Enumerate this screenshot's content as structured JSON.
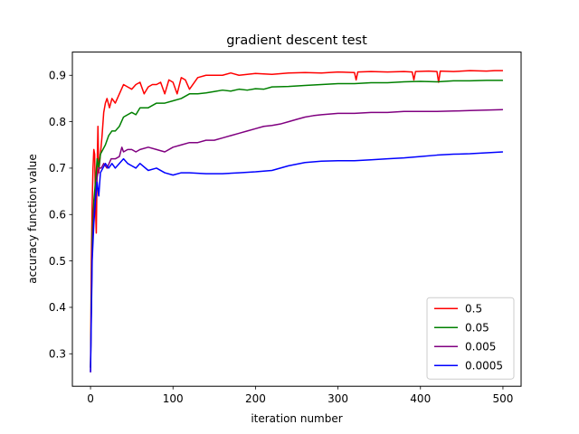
{
  "chart_data": {
    "type": "line",
    "title": "gradient descent test",
    "xlabel": "iteration number",
    "ylabel": "accuracy function value",
    "xlim": [
      -22,
      522
    ],
    "ylim": [
      0.23,
      0.95
    ],
    "xticks": [
      0,
      100,
      200,
      300,
      400,
      500
    ],
    "yticks": [
      0.3,
      0.4,
      0.5,
      0.6,
      0.7,
      0.8,
      0.9
    ],
    "xtick_labels": [
      "0",
      "100",
      "200",
      "300",
      "400",
      "500"
    ],
    "ytick_labels": [
      "0.3",
      "0.4",
      "0.5",
      "0.6",
      "0.7",
      "0.8",
      "0.9"
    ],
    "grid": false,
    "legend": "lower-right",
    "series": [
      {
        "name": "0.5",
        "color": "#ff0000",
        "x": [
          0,
          1,
          2,
          3,
          4,
          5,
          6,
          7,
          8,
          9,
          10,
          12,
          14,
          16,
          18,
          20,
          23,
          26,
          30,
          35,
          40,
          45,
          50,
          55,
          60,
          65,
          70,
          75,
          80,
          85,
          90,
          95,
          100,
          105,
          110,
          115,
          120,
          130,
          140,
          150,
          160,
          170,
          180,
          190,
          200,
          220,
          240,
          260,
          280,
          300,
          320,
          322,
          324,
          340,
          360,
          380,
          390,
          392,
          394,
          410,
          420,
          422,
          424,
          440,
          460,
          480,
          490,
          500
        ],
        "y": [
          0.26,
          0.5,
          0.62,
          0.7,
          0.74,
          0.73,
          0.62,
          0.56,
          0.7,
          0.79,
          0.69,
          0.73,
          0.77,
          0.82,
          0.84,
          0.85,
          0.83,
          0.85,
          0.84,
          0.86,
          0.88,
          0.875,
          0.87,
          0.88,
          0.885,
          0.86,
          0.875,
          0.88,
          0.88,
          0.885,
          0.86,
          0.89,
          0.885,
          0.86,
          0.895,
          0.89,
          0.87,
          0.895,
          0.9,
          0.9,
          0.9,
          0.905,
          0.9,
          0.902,
          0.904,
          0.902,
          0.905,
          0.906,
          0.905,
          0.907,
          0.906,
          0.89,
          0.907,
          0.908,
          0.907,
          0.908,
          0.907,
          0.89,
          0.908,
          0.909,
          0.908,
          0.885,
          0.909,
          0.908,
          0.91,
          0.909,
          0.91,
          0.91
        ]
      },
      {
        "name": "0.05",
        "color": "#008000",
        "x": [
          0,
          2,
          4,
          6,
          8,
          10,
          12,
          15,
          18,
          22,
          26,
          30,
          35,
          40,
          45,
          50,
          55,
          60,
          70,
          80,
          90,
          100,
          110,
          120,
          130,
          140,
          150,
          160,
          170,
          180,
          190,
          200,
          210,
          220,
          240,
          260,
          280,
          300,
          320,
          340,
          360,
          380,
          400,
          420,
          440,
          460,
          480,
          500
        ],
        "y": [
          0.27,
          0.55,
          0.63,
          0.67,
          0.72,
          0.7,
          0.73,
          0.74,
          0.75,
          0.77,
          0.78,
          0.78,
          0.79,
          0.81,
          0.815,
          0.82,
          0.815,
          0.83,
          0.83,
          0.84,
          0.84,
          0.845,
          0.85,
          0.86,
          0.86,
          0.862,
          0.865,
          0.868,
          0.866,
          0.87,
          0.868,
          0.871,
          0.87,
          0.875,
          0.876,
          0.878,
          0.88,
          0.882,
          0.882,
          0.884,
          0.884,
          0.886,
          0.887,
          0.886,
          0.888,
          0.888,
          0.889,
          0.889
        ]
      },
      {
        "name": "0.005",
        "color": "#800080",
        "x": [
          0,
          2,
          4,
          6,
          8,
          10,
          13,
          16,
          20,
          25,
          30,
          35,
          38,
          40,
          45,
          50,
          55,
          60,
          70,
          80,
          90,
          100,
          110,
          120,
          130,
          140,
          150,
          160,
          170,
          180,
          190,
          200,
          210,
          220,
          230,
          240,
          250,
          260,
          270,
          280,
          300,
          320,
          340,
          360,
          380,
          400,
          420,
          440,
          460,
          480,
          500
        ],
        "y": [
          0.27,
          0.52,
          0.6,
          0.64,
          0.68,
          0.7,
          0.7,
          0.71,
          0.7,
          0.72,
          0.72,
          0.725,
          0.745,
          0.735,
          0.74,
          0.74,
          0.735,
          0.74,
          0.745,
          0.74,
          0.735,
          0.745,
          0.75,
          0.755,
          0.755,
          0.76,
          0.76,
          0.765,
          0.77,
          0.775,
          0.78,
          0.785,
          0.79,
          0.792,
          0.795,
          0.8,
          0.805,
          0.81,
          0.813,
          0.815,
          0.818,
          0.818,
          0.82,
          0.82,
          0.822,
          0.822,
          0.822,
          0.823,
          0.824,
          0.825,
          0.826
        ]
      },
      {
        "name": "0.0005",
        "color": "#0000ff",
        "x": [
          0,
          2,
          4,
          6,
          8,
          10,
          12,
          15,
          18,
          22,
          26,
          30,
          35,
          40,
          45,
          50,
          55,
          60,
          70,
          80,
          90,
          100,
          110,
          120,
          140,
          160,
          180,
          200,
          220,
          240,
          260,
          280,
          300,
          320,
          340,
          360,
          380,
          400,
          420,
          440,
          460,
          480,
          500
        ],
        "y": [
          0.26,
          0.5,
          0.58,
          0.63,
          0.67,
          0.64,
          0.69,
          0.7,
          0.71,
          0.7,
          0.71,
          0.7,
          0.71,
          0.72,
          0.71,
          0.705,
          0.7,
          0.71,
          0.695,
          0.7,
          0.69,
          0.685,
          0.69,
          0.69,
          0.688,
          0.688,
          0.69,
          0.692,
          0.695,
          0.705,
          0.712,
          0.715,
          0.716,
          0.716,
          0.718,
          0.72,
          0.722,
          0.725,
          0.728,
          0.73,
          0.731,
          0.733,
          0.735
        ]
      }
    ]
  }
}
